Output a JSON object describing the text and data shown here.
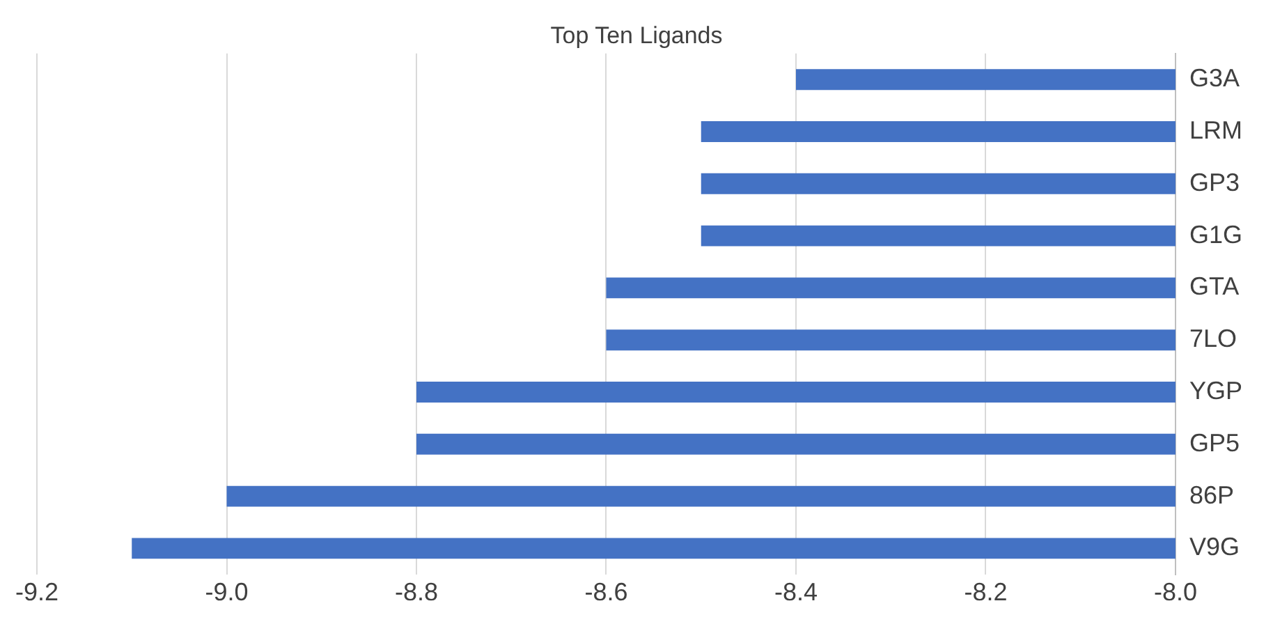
{
  "chart_data": {
    "type": "bar",
    "orientation": "horizontal",
    "title": "Top Ten Ligands",
    "categories": [
      "G3A",
      "LRM",
      "GP3",
      "G1G",
      "GTA",
      "7LO",
      "YGP",
      "GP5",
      "86P",
      "V9G"
    ],
    "values": [
      -8.4,
      -8.5,
      -8.5,
      -8.5,
      -8.6,
      -8.6,
      -8.8,
      -8.8,
      -9.0,
      -9.1
    ],
    "color": "#4472c4",
    "xlim": [
      -9.2,
      -8.0
    ],
    "xticks": [
      {
        "value": -9.2,
        "label": "-9.2"
      },
      {
        "value": -9.0,
        "label": "-9.0"
      },
      {
        "value": -8.8,
        "label": "-8.8"
      },
      {
        "value": -8.6,
        "label": "-8.6"
      },
      {
        "value": -8.4,
        "label": "-8.4"
      },
      {
        "value": -8.2,
        "label": "-8.2"
      },
      {
        "value": -8.0,
        "label": "-8.0"
      }
    ],
    "grid": "x",
    "legend": false
  }
}
